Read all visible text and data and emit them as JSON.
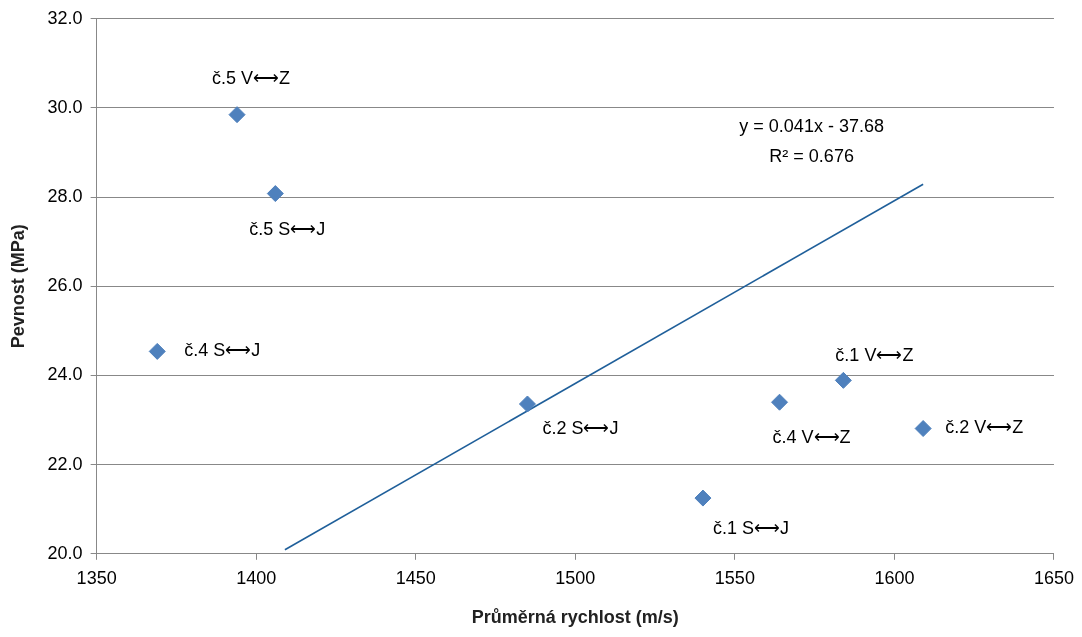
{
  "chart_data": {
    "type": "scatter",
    "xlabel": "Průměrná rychlost (m/s)",
    "ylabel": "Pevnost (MPa)",
    "xlim": [
      1350,
      1650
    ],
    "xticks": [
      1350,
      1400,
      1450,
      1500,
      1550,
      1600,
      1650
    ],
    "ylim": [
      20,
      32
    ],
    "yticks": [
      {
        "value": 20,
        "label": "20.0"
      },
      {
        "value": 22,
        "label": "22.0"
      },
      {
        "value": 24,
        "label": "24.0"
      },
      {
        "value": 26,
        "label": "26.0"
      },
      {
        "value": 28,
        "label": "28.0"
      },
      {
        "value": 30,
        "label": "30.0"
      },
      {
        "value": 32,
        "label": "32.0"
      }
    ],
    "grid": "y",
    "legend": false,
    "marker": "diamond",
    "series": [
      {
        "color": "#4f81bd",
        "x": [
          1394,
          1406,
          1369,
          1485,
          1540,
          1564,
          1584,
          1609
        ],
        "values": [
          29.85,
          28.08,
          24.54,
          23.36,
          21.25,
          23.4,
          23.89,
          22.81
        ]
      },
      {
        "type": "line",
        "marker": "none",
        "color": "#1f5f9a",
        "x": [
          1409,
          1609
        ],
        "values": [
          20.09,
          28.29
        ]
      }
    ],
    "annotations": [
      {
        "text": "č.5 V⟷Z",
        "x": 1394,
        "y": 29.85
      },
      {
        "text": "č.5 S⟷J",
        "x": 1406,
        "y": 28.08
      },
      {
        "text": "č.4 S⟷J",
        "x": 1369,
        "y": 24.54
      },
      {
        "text": "č.2 S⟷J",
        "x": 1485,
        "y": 23.36
      },
      {
        "text": "č.1 S⟷J",
        "x": 1540,
        "y": 21.25
      },
      {
        "text": "č.4 V⟷Z",
        "x": 1564,
        "y": 23.4
      },
      {
        "text": "č.1 V⟷Z",
        "x": 1584,
        "y": 23.89
      },
      {
        "text": "č.2 V⟷Z",
        "x": 1609,
        "y": 22.81
      },
      "y = 0.041x - 37.68",
      "R² = 0.676"
    ]
  }
}
